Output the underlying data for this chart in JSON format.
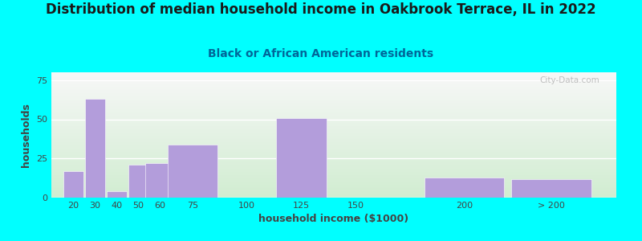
{
  "title": "Distribution of median household income in Oakbrook Terrace, IL in 2022",
  "subtitle": "Black or African American residents",
  "xlabel": "household income ($1000)",
  "ylabel": "households",
  "bar_labels": [
    "20",
    "30",
    "40",
    "50",
    "60",
    "75",
    "100",
    "125",
    "150",
    "200",
    "> 200"
  ],
  "bar_centers": [
    20,
    30,
    40,
    50,
    60,
    75,
    100,
    125,
    150,
    200,
    240
  ],
  "bar_widths": [
    10,
    10,
    10,
    10,
    15,
    25,
    25,
    25,
    50,
    40,
    40
  ],
  "bar_values": [
    17,
    63,
    4,
    21,
    22,
    34,
    0,
    51,
    0,
    13,
    12
  ],
  "bar_color": "#b39ddb",
  "ylim": [
    0,
    80
  ],
  "yticks": [
    0,
    25,
    50,
    75
  ],
  "xlim": [
    10,
    270
  ],
  "xtick_positions": [
    20,
    30,
    40,
    50,
    60,
    75,
    100,
    125,
    150,
    200,
    240
  ],
  "background_color": "#00ffff",
  "title_color": "#1a1a1a",
  "subtitle_color": "#006699",
  "axis_color": "#444444",
  "title_fontsize": 12,
  "subtitle_fontsize": 10,
  "label_fontsize": 9,
  "tick_fontsize": 8,
  "watermark": "City-Data.com"
}
